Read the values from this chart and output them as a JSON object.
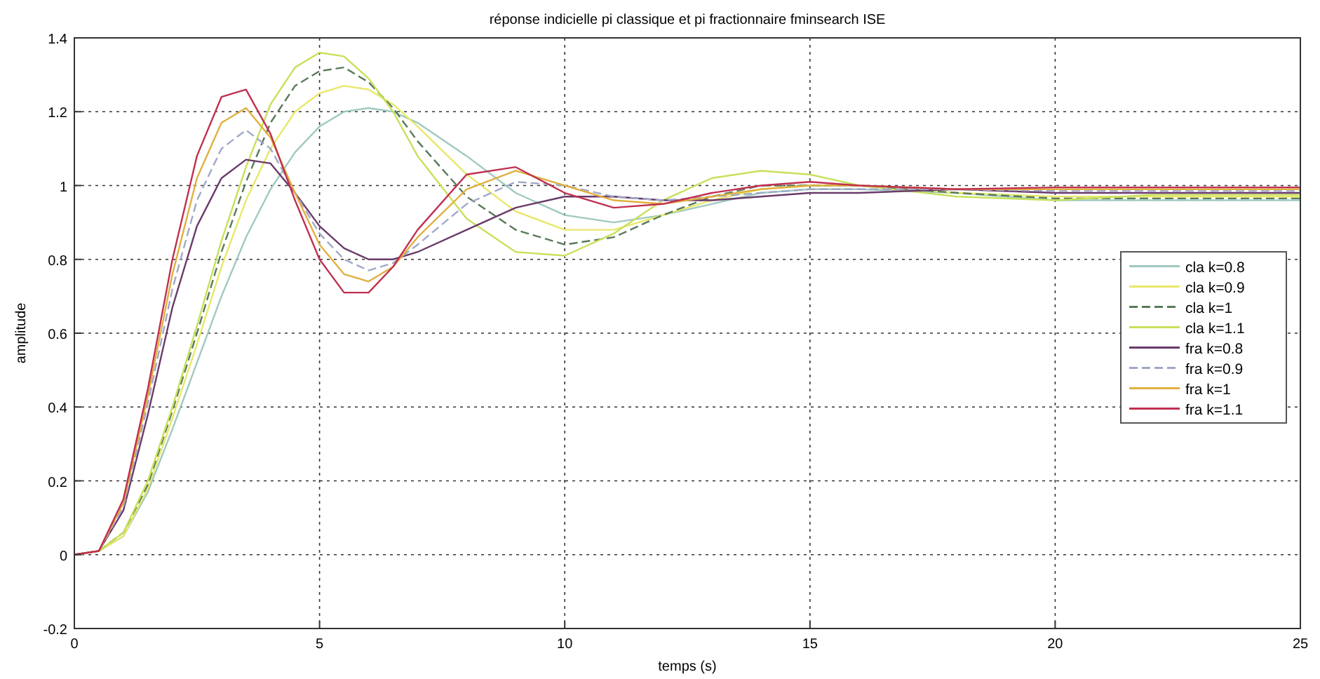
{
  "chart_data": {
    "type": "line",
    "title": "réponse indicielle pi classique et pi fractionnaire  fminsearch ISE",
    "xlabel": "temps (s)",
    "ylabel": "amplitude",
    "x": [
      0,
      0.5,
      1,
      1.5,
      2,
      2.5,
      3,
      3.5,
      4,
      4.5,
      5,
      5.5,
      6,
      6.5,
      7,
      8,
      9,
      10,
      11,
      12,
      13,
      14,
      15,
      16,
      18,
      20,
      22,
      25
    ],
    "xlim": [
      0,
      25
    ],
    "xticks": [
      0,
      5,
      10,
      15,
      20,
      25
    ],
    "ylim": [
      -0.2,
      1.4
    ],
    "yticks": [
      -0.2,
      0,
      0.2,
      0.4,
      0.6,
      0.8,
      1,
      1.2,
      1.4
    ],
    "grid": true,
    "legend": "right",
    "line_style": "solid",
    "series": [
      {
        "name": "cla k=0.8",
        "color": "#9fc9c0",
        "values": [
          0,
          0.01,
          0.05,
          0.17,
          0.34,
          0.52,
          0.7,
          0.86,
          0.99,
          1.09,
          1.16,
          1.2,
          1.21,
          1.2,
          1.17,
          1.08,
          0.98,
          0.92,
          0.9,
          0.92,
          0.95,
          0.98,
          0.99,
          0.99,
          0.98,
          0.96,
          0.96,
          0.96
        ]
      },
      {
        "name": "cla k=0.9",
        "color": "#e8e86a",
        "values": [
          0,
          0.01,
          0.05,
          0.18,
          0.37,
          0.57,
          0.78,
          0.96,
          1.1,
          1.2,
          1.25,
          1.27,
          1.26,
          1.22,
          1.16,
          1.03,
          0.93,
          0.88,
          0.88,
          0.92,
          0.96,
          0.99,
          1.0,
          1.0,
          0.98,
          0.97,
          0.97,
          0.97
        ]
      },
      {
        "name": "cla k=1",
        "color": "#5a7a5a",
        "line_style": "dashed",
        "values": [
          0,
          0.01,
          0.06,
          0.19,
          0.39,
          0.6,
          0.82,
          1.01,
          1.17,
          1.27,
          1.31,
          1.32,
          1.28,
          1.21,
          1.12,
          0.97,
          0.88,
          0.84,
          0.86,
          0.92,
          0.97,
          1.0,
          1.0,
          1.0,
          0.98,
          0.965,
          0.965,
          0.965
        ]
      },
      {
        "name": "cla k=1.1",
        "color": "#c8e05a",
        "values": [
          0,
          0.01,
          0.06,
          0.2,
          0.4,
          0.62,
          0.85,
          1.05,
          1.22,
          1.32,
          1.36,
          1.35,
          1.29,
          1.2,
          1.08,
          0.91,
          0.82,
          0.81,
          0.87,
          0.96,
          1.02,
          1.04,
          1.03,
          1.0,
          0.97,
          0.96,
          0.975,
          0.975
        ]
      },
      {
        "name": "fra k=0.8",
        "color": "#6a3a6a",
        "values": [
          0,
          0.01,
          0.12,
          0.38,
          0.67,
          0.89,
          1.02,
          1.07,
          1.06,
          0.98,
          0.89,
          0.83,
          0.8,
          0.8,
          0.82,
          0.88,
          0.94,
          0.97,
          0.97,
          0.96,
          0.96,
          0.97,
          0.98,
          0.98,
          0.99,
          0.98,
          0.98,
          0.98
        ]
      },
      {
        "name": "fra k=0.9",
        "color": "#a0a8c8",
        "line_style": "dashed",
        "values": [
          0,
          0.01,
          0.13,
          0.41,
          0.72,
          0.96,
          1.1,
          1.15,
          1.1,
          0.98,
          0.87,
          0.8,
          0.77,
          0.79,
          0.84,
          0.95,
          1.01,
          1.0,
          0.97,
          0.96,
          0.97,
          0.98,
          0.99,
          0.99,
          0.99,
          0.985,
          0.985,
          0.985
        ]
      },
      {
        "name": "fra k=1",
        "color": "#e0b040",
        "values": [
          0,
          0.01,
          0.14,
          0.43,
          0.76,
          1.02,
          1.17,
          1.21,
          1.13,
          0.98,
          0.84,
          0.76,
          0.74,
          0.78,
          0.86,
          0.99,
          1.04,
          1.0,
          0.96,
          0.95,
          0.97,
          0.99,
          1.0,
          1.0,
          0.99,
          0.99,
          0.99,
          0.99
        ]
      },
      {
        "name": "fra k=1.1",
        "color": "#c03050",
        "values": [
          0,
          0.01,
          0.15,
          0.45,
          0.8,
          1.08,
          1.24,
          1.26,
          1.14,
          0.96,
          0.8,
          0.71,
          0.71,
          0.78,
          0.88,
          1.03,
          1.05,
          0.98,
          0.94,
          0.95,
          0.98,
          1.0,
          1.01,
          1.0,
          0.99,
          0.995,
          0.995,
          0.995
        ]
      }
    ]
  }
}
